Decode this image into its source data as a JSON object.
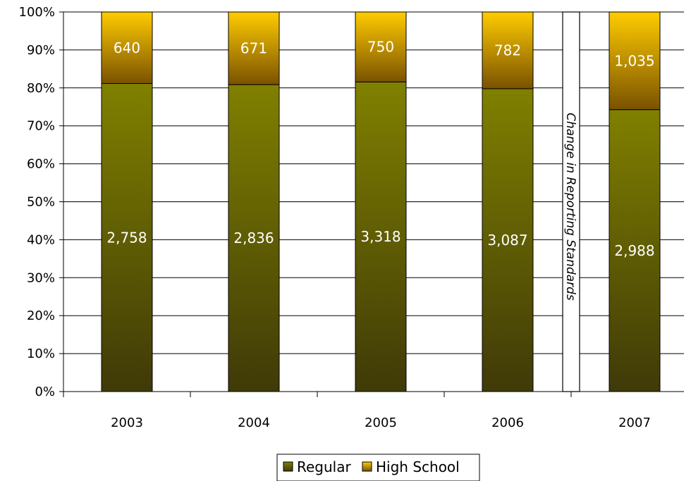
{
  "chart_data": {
    "type": "bar",
    "stacked": true,
    "normalized": "percent",
    "categories": [
      "2003",
      "2004",
      "2005",
      "2006",
      "2007"
    ],
    "series": [
      {
        "name": "Regular",
        "values": [
          2758,
          2836,
          3318,
          3087,
          2988
        ],
        "labels": [
          "2,758",
          "2,836",
          "3,318",
          "3,087",
          "2,988"
        ],
        "color": "#6e6e08"
      },
      {
        "name": "High School",
        "values": [
          640,
          671,
          750,
          782,
          1035
        ],
        "labels": [
          "640",
          "671",
          "750",
          "782",
          "1,035"
        ],
        "color": "#f5c400"
      }
    ],
    "ylim": [
      0,
      100
    ],
    "yticks": [
      "0%",
      "10%",
      "20%",
      "30%",
      "40%",
      "50%",
      "60%",
      "70%",
      "80%",
      "90%",
      "100%"
    ],
    "grid": true,
    "legend": "bottom",
    "annotation": "Change in Reporting Standards"
  }
}
